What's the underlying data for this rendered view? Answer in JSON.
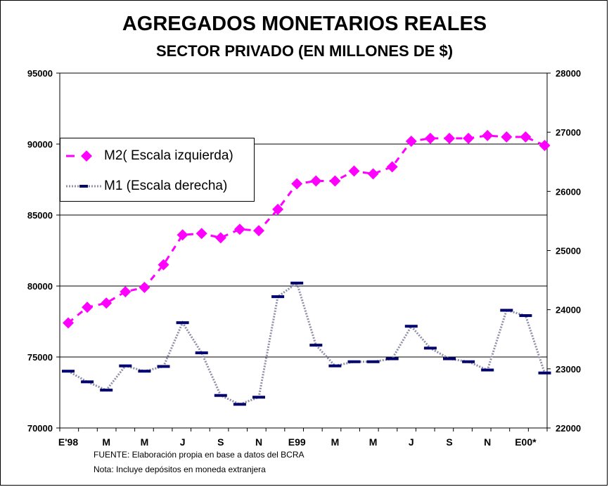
{
  "chart_data": {
    "type": "line",
    "title": "AGREGADOS MONETARIOS REALES",
    "subtitle": "SECTOR PRIVADO (EN MILLONES DE $)",
    "x_tick_labels": [
      "E'98",
      "M",
      "M",
      "J",
      "S",
      "N",
      "E99",
      "M",
      "M",
      "J",
      "S",
      "N",
      "E00*"
    ],
    "y_left": {
      "min": 70000,
      "max": 95000,
      "ticks": [
        "70000",
        "75000",
        "80000",
        "85000",
        "90000",
        "95000"
      ]
    },
    "y_right": {
      "min": 22000,
      "max": 28000,
      "ticks": [
        "22000",
        "23000",
        "24000",
        "25000",
        "26000",
        "27000",
        "28000"
      ]
    },
    "grid": "horizontal",
    "legend_position": "top-left",
    "series": [
      {
        "name": "M2( Escala izquierda)",
        "axis": "left",
        "color": "#ff00ff",
        "style": "dashed-diamond",
        "values": [
          77400,
          78500,
          78800,
          79600,
          79900,
          81500,
          83600,
          83700,
          83400,
          84000,
          83900,
          85400,
          87200,
          87400,
          87400,
          88100,
          87900,
          88400,
          90200,
          90400,
          90400,
          90400,
          90600,
          90500,
          90500,
          89900
        ]
      },
      {
        "name": "M1 (Escala derecha)",
        "axis": "right",
        "color": "#00006e",
        "style": "dotted-dash",
        "values": [
          22960,
          22780,
          22640,
          23050,
          22960,
          23040,
          23780,
          23270,
          22550,
          22400,
          22520,
          24220,
          24450,
          23400,
          23050,
          23120,
          23120,
          23170,
          23720,
          23350,
          23170,
          23120,
          22980,
          23990,
          23900,
          22930
        ]
      }
    ]
  },
  "footer": {
    "source": "FUENTE:  Elaboración propia en base a datos del BCRA",
    "note": "Nota:  Incluye depósitos en moneda extranjera"
  }
}
